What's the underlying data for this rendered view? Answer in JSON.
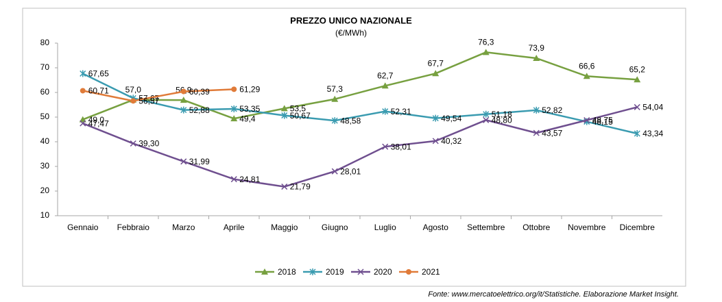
{
  "chart_data": {
    "type": "line",
    "title": "PREZZO UNICO NAZIONALE",
    "subtitle": "(€/MWh)",
    "categories": [
      "Gennaio",
      "Febbraio",
      "Marzo",
      "Aprile",
      "Maggio",
      "Giugno",
      "Luglio",
      "Agosto",
      "Settembre",
      "Ottobre",
      "Novembre",
      "Dicembre"
    ],
    "series": [
      {
        "name": "2018",
        "color": "#77a040",
        "marker": "triangle",
        "values": [
          49.0,
          57.0,
          56.9,
          49.4,
          53.5,
          57.3,
          62.7,
          67.7,
          76.3,
          73.9,
          66.6,
          65.2
        ],
        "value_labels": [
          "49,0",
          "57,0",
          "56,9",
          "49,4",
          "53,5",
          "57,3",
          "62,7",
          "67,7",
          "76,3",
          "73,9",
          "66,6",
          "65,2"
        ]
      },
      {
        "name": "2019",
        "color": "#3a9bb0",
        "marker": "star",
        "values": [
          67.65,
          57.67,
          52.88,
          53.35,
          50.67,
          48.58,
          52.31,
          49.54,
          51.18,
          52.82,
          48.15,
          43.34
        ],
        "value_labels": [
          "67,65",
          "57,67",
          "52,88",
          "53,35",
          "50,67",
          "48,58",
          "52,31",
          "49,54",
          "51,18",
          "52,82",
          "48,15",
          "43,34"
        ]
      },
      {
        "name": "2020",
        "color": "#6f4f8f",
        "marker": "x",
        "values": [
          47.47,
          39.3,
          31.99,
          24.81,
          21.79,
          28.01,
          38.01,
          40.32,
          48.8,
          43.57,
          48.75,
          54.04
        ],
        "value_labels": [
          "47,47",
          "39,30",
          "31,99",
          "24,81",
          "21,79",
          "28,01",
          "38,01",
          "40,32",
          "48,80",
          "43,57",
          "48,75",
          "54,04"
        ]
      },
      {
        "name": "2021",
        "color": "#e07b39",
        "marker": "circle",
        "values": [
          60.71,
          56.57,
          60.39,
          61.29,
          null,
          null,
          null,
          null,
          null,
          null,
          null,
          null
        ],
        "value_labels": [
          "60,71",
          "56,57",
          "60,39",
          "61,29",
          null,
          null,
          null,
          null,
          null,
          null,
          null,
          null
        ]
      }
    ],
    "ylim": [
      10,
      80
    ],
    "yticks": [
      10,
      20,
      30,
      40,
      50,
      60,
      70,
      80
    ],
    "grid": false,
    "legend": "bottom",
    "source": "Fonte: www.mercatoelettrico.org/it/Statistiche. Elaborazione Market Insight."
  }
}
